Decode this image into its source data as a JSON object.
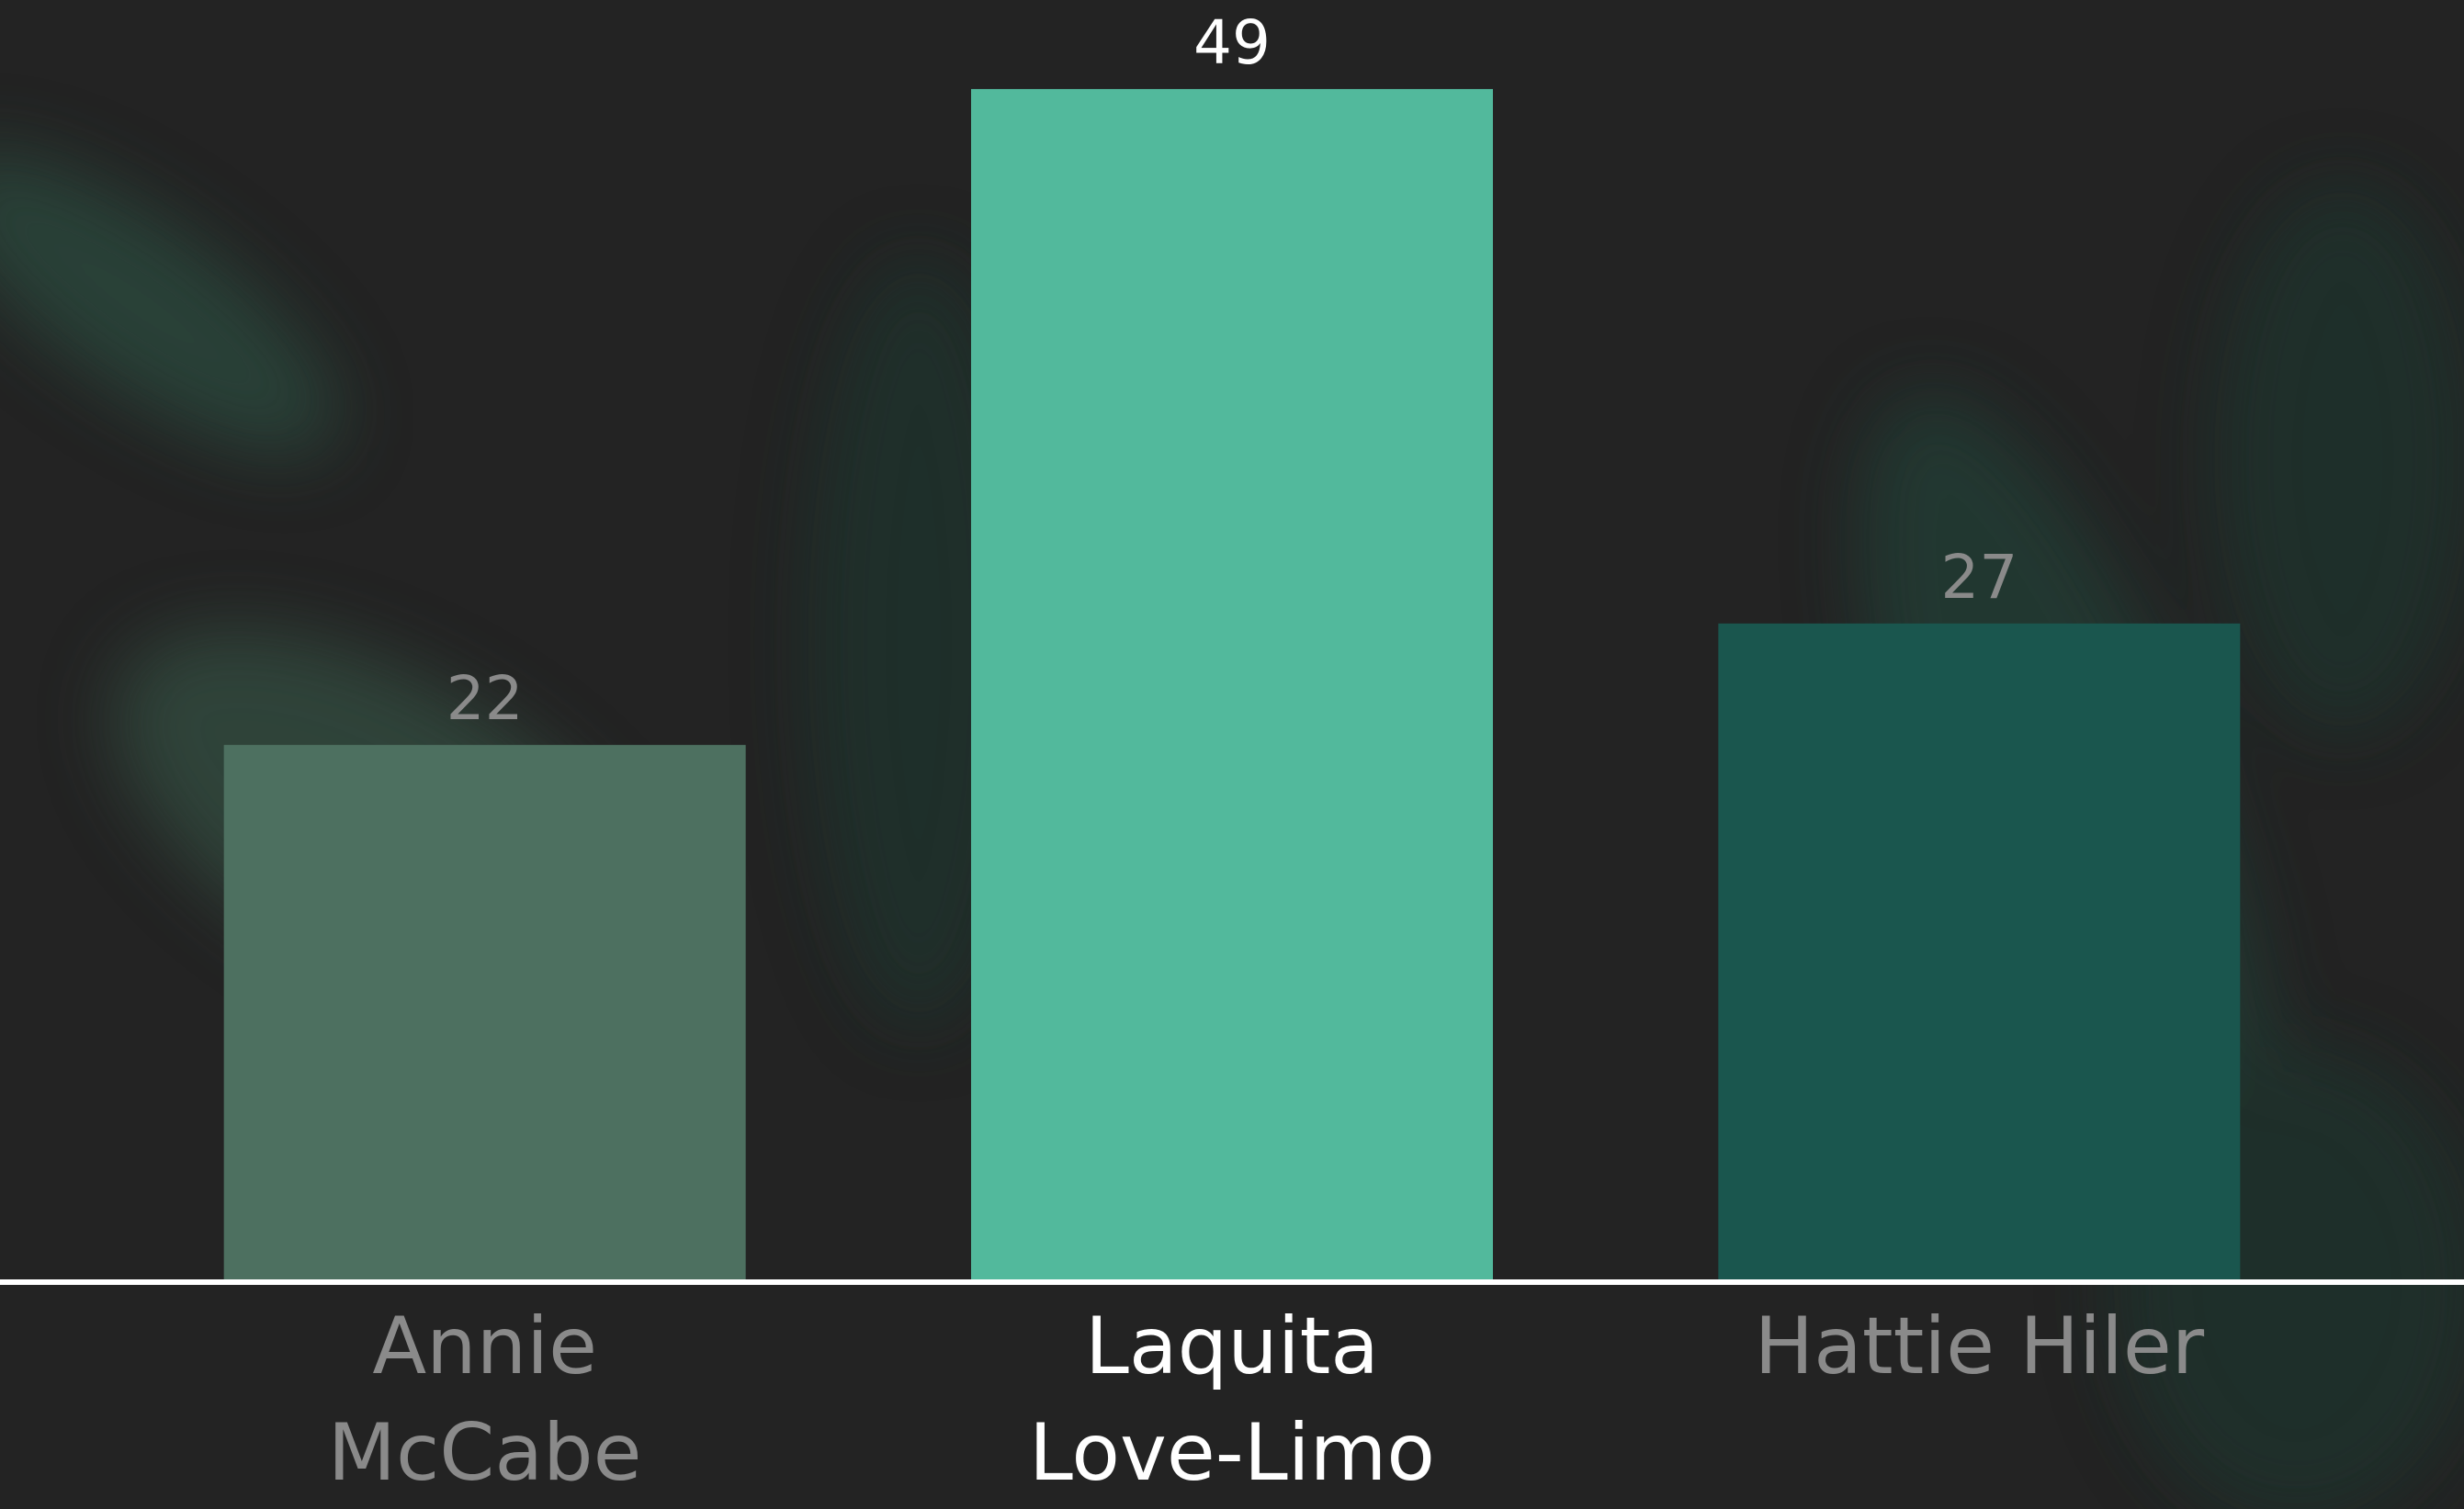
{
  "chart_data": {
    "type": "bar",
    "categories": [
      "Annie\nMcCabe",
      "Laquita\nLove-Limo",
      "Hattie Hiler"
    ],
    "values": [
      22,
      49,
      27
    ],
    "colors": [
      "#4d7060",
      "#52b99c",
      "#1a564e"
    ],
    "label_colors": [
      "#8a8a8a",
      "#ffffff",
      "#8a8a8a"
    ]
  }
}
